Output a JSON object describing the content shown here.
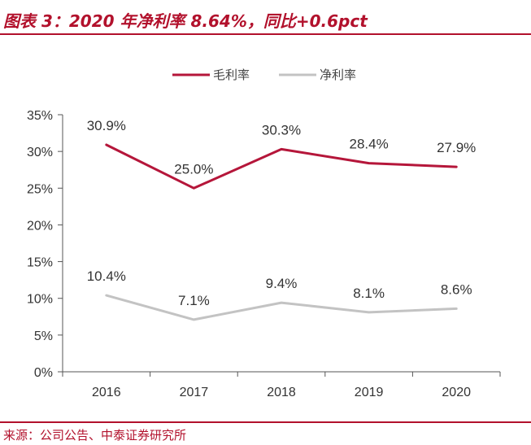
{
  "header": {
    "title": "图表 3：2020 年净利率 8.64%，同比+0.6pct"
  },
  "footer": {
    "source": "来源：公司公告、中泰证券研究所"
  },
  "chart_data": {
    "type": "line",
    "title": "图表 3：2020 年净利率 8.64%，同比+0.6pct",
    "categories": [
      "2016",
      "2017",
      "2018",
      "2019",
      "2020"
    ],
    "ylim": [
      0,
      35
    ],
    "yticks": [
      0,
      5,
      10,
      15,
      20,
      25,
      30,
      35
    ],
    "ytick_labels": [
      "0%",
      "5%",
      "10%",
      "15%",
      "20%",
      "25%",
      "30%",
      "35%"
    ],
    "xlabel": "",
    "ylabel": "",
    "grid": false,
    "legend_position": "top-center",
    "series": [
      {
        "name": "毛利率",
        "color": "#b5163a",
        "values": [
          30.9,
          25.0,
          30.3,
          28.4,
          27.9
        ],
        "labels": [
          "30.9%",
          "25.0%",
          "30.3%",
          "28.4%",
          "27.9%"
        ]
      },
      {
        "name": "净利率",
        "color": "#c3c3c3",
        "values": [
          10.4,
          7.1,
          9.4,
          8.1,
          8.6
        ],
        "labels": [
          "10.4%",
          "7.1%",
          "9.4%",
          "8.1%",
          "8.6%"
        ]
      }
    ]
  }
}
